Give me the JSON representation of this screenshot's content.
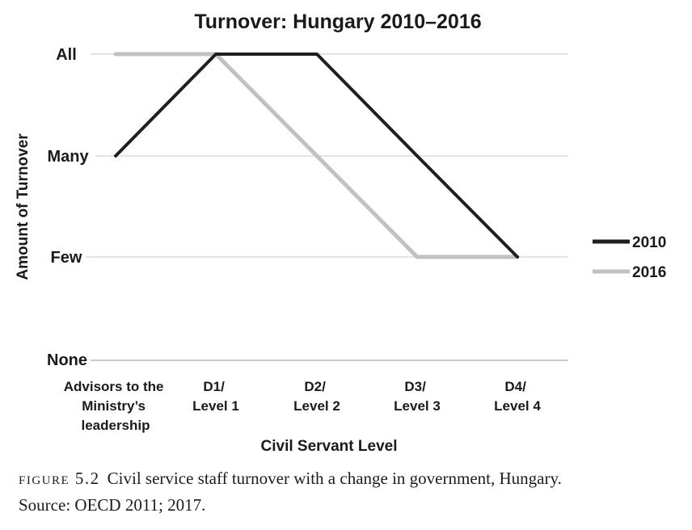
{
  "chart_data": {
    "type": "line",
    "title": "Turnover: Hungary 2010–2016",
    "xlabel": "Civil Servant Level",
    "ylabel": "Amount of Turnover",
    "categories": [
      "Advisors to the Ministry’s leadership",
      "D1/Level 1",
      "D2/Level 2",
      "D3/Level 3",
      "D4/Level 4"
    ],
    "category_label_lines": [
      [
        "Advisors to the",
        "Ministry’s",
        "leadership"
      ],
      [
        "D1/",
        "Level 1"
      ],
      [
        "D2/",
        "Level 2"
      ],
      [
        "D3/",
        "Level 3"
      ],
      [
        "D4/",
        "Level 4"
      ]
    ],
    "y_tick_labels": [
      "All",
      "Many",
      "Few",
      "None"
    ],
    "y_order_bottom_to_top": [
      "None",
      "Few",
      "Many",
      "All"
    ],
    "value_scale": {
      "None": 0,
      "Few": 1,
      "Many": 2,
      "All": 3
    },
    "series": [
      {
        "name": "2010",
        "color": "#1f1f1f",
        "values": [
          "Many",
          "All",
          "All",
          "Many",
          "Few"
        ],
        "values_numeric": [
          2,
          3,
          3,
          2,
          1
        ]
      },
      {
        "name": "2016",
        "color": "#c1c1c1",
        "values": [
          "All",
          "All",
          "Many",
          "Few",
          "Few"
        ],
        "values_numeric": [
          3,
          3,
          2,
          1,
          1
        ]
      }
    ],
    "grid": true,
    "legend_position": "right"
  },
  "colors": {
    "gridline": "#dcdcdc",
    "axis_line": "#c9c9c9",
    "text": "#1a1a1a"
  },
  "figure": {
    "caption": {
      "label": "figure 5.2",
      "text": "Civil service staff turnover with a change in government, Hungary.",
      "source": "Source: OECD 2011; 2017."
    }
  }
}
